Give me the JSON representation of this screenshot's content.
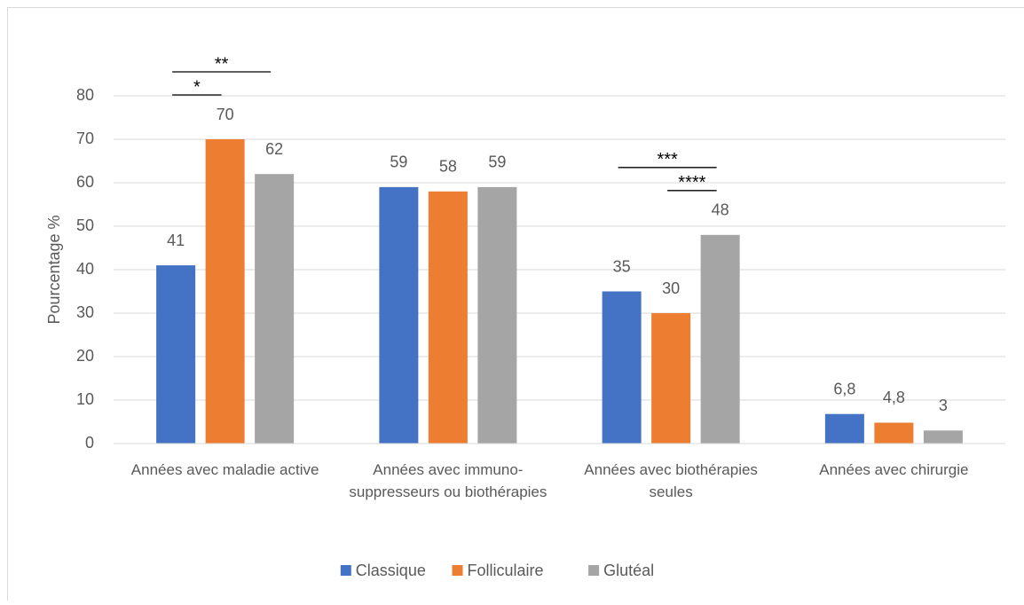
{
  "chart_data": {
    "type": "bar",
    "y_label": "Pourcentage %",
    "categories": [
      "Années avec maladie active",
      "Années avec immuno-suppresseurs ou biothérapies",
      "Années avec biothérapies seules",
      "Années avec chirurgie"
    ],
    "series": [
      {
        "name": "Classique",
        "color": "#4472c4",
        "values": [
          41,
          59,
          35,
          6.8
        ],
        "value_labels": [
          "41",
          "59",
          "35",
          "6,8"
        ]
      },
      {
        "name": "Folliculaire",
        "color": "#ed7d31",
        "values": [
          70,
          58,
          30,
          4.8
        ],
        "value_labels": [
          "70",
          "58",
          "30",
          "4,8"
        ]
      },
      {
        "name": "Glutéal",
        "color": "#a5a5a5",
        "values": [
          62,
          59,
          48,
          3
        ]
      }
    ],
    "ylim": [
      0,
      80
    ],
    "yticks": [
      0,
      10,
      20,
      30,
      40,
      50,
      60,
      70,
      80
    ],
    "grid": true,
    "legend": "bottom",
    "annotations": [
      {
        "text": "**",
        "category": 0,
        "series": [
          0,
          2
        ]
      },
      {
        "text": "*",
        "category": 0,
        "series": [
          0,
          1
        ]
      },
      {
        "text": "***",
        "category": 2,
        "series": [
          0,
          2
        ]
      },
      {
        "text": "****",
        "category": 2,
        "series": [
          1,
          2
        ]
      }
    ]
  }
}
